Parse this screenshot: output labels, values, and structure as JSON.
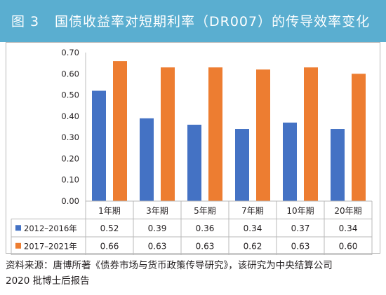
{
  "figure": {
    "label": "图 3",
    "title": "国债收益率对短期利率（DR007）的传导效率变化"
  },
  "colors": {
    "title_bar": "#5aaed0",
    "series_1": "#4472c4",
    "series_2": "#ed7d31"
  },
  "chart_data": {
    "type": "bar",
    "categories": [
      "1年期",
      "3年期",
      "5年期",
      "7年期",
      "10年期",
      "20年期"
    ],
    "series": [
      {
        "name": "2012–2016年",
        "values": [
          0.52,
          0.39,
          0.36,
          0.34,
          0.37,
          0.34
        ],
        "color": "#4472c4"
      },
      {
        "name": "2017–2021年",
        "values": [
          0.66,
          0.63,
          0.63,
          0.62,
          0.63,
          0.6
        ],
        "color": "#ed7d31"
      }
    ],
    "table_values": [
      [
        "0.52",
        "0.39",
        "0.36",
        "0.34",
        "0.37",
        "0.34"
      ],
      [
        "0.66",
        "0.63",
        "0.63",
        "0.62",
        "0.63",
        "0.60"
      ]
    ],
    "ylim": [
      0,
      0.7
    ],
    "yticks": [
      "0.00",
      "0.10",
      "0.20",
      "0.30",
      "0.40",
      "0.50",
      "0.60",
      "0.70"
    ],
    "grid": false,
    "legend": "data-table"
  },
  "source_note": {
    "line1": "资料来源：唐博所著《债券市场与货币政策传导研究》，该研究为中央结算公司",
    "line2": "2020 批博士后报告"
  }
}
